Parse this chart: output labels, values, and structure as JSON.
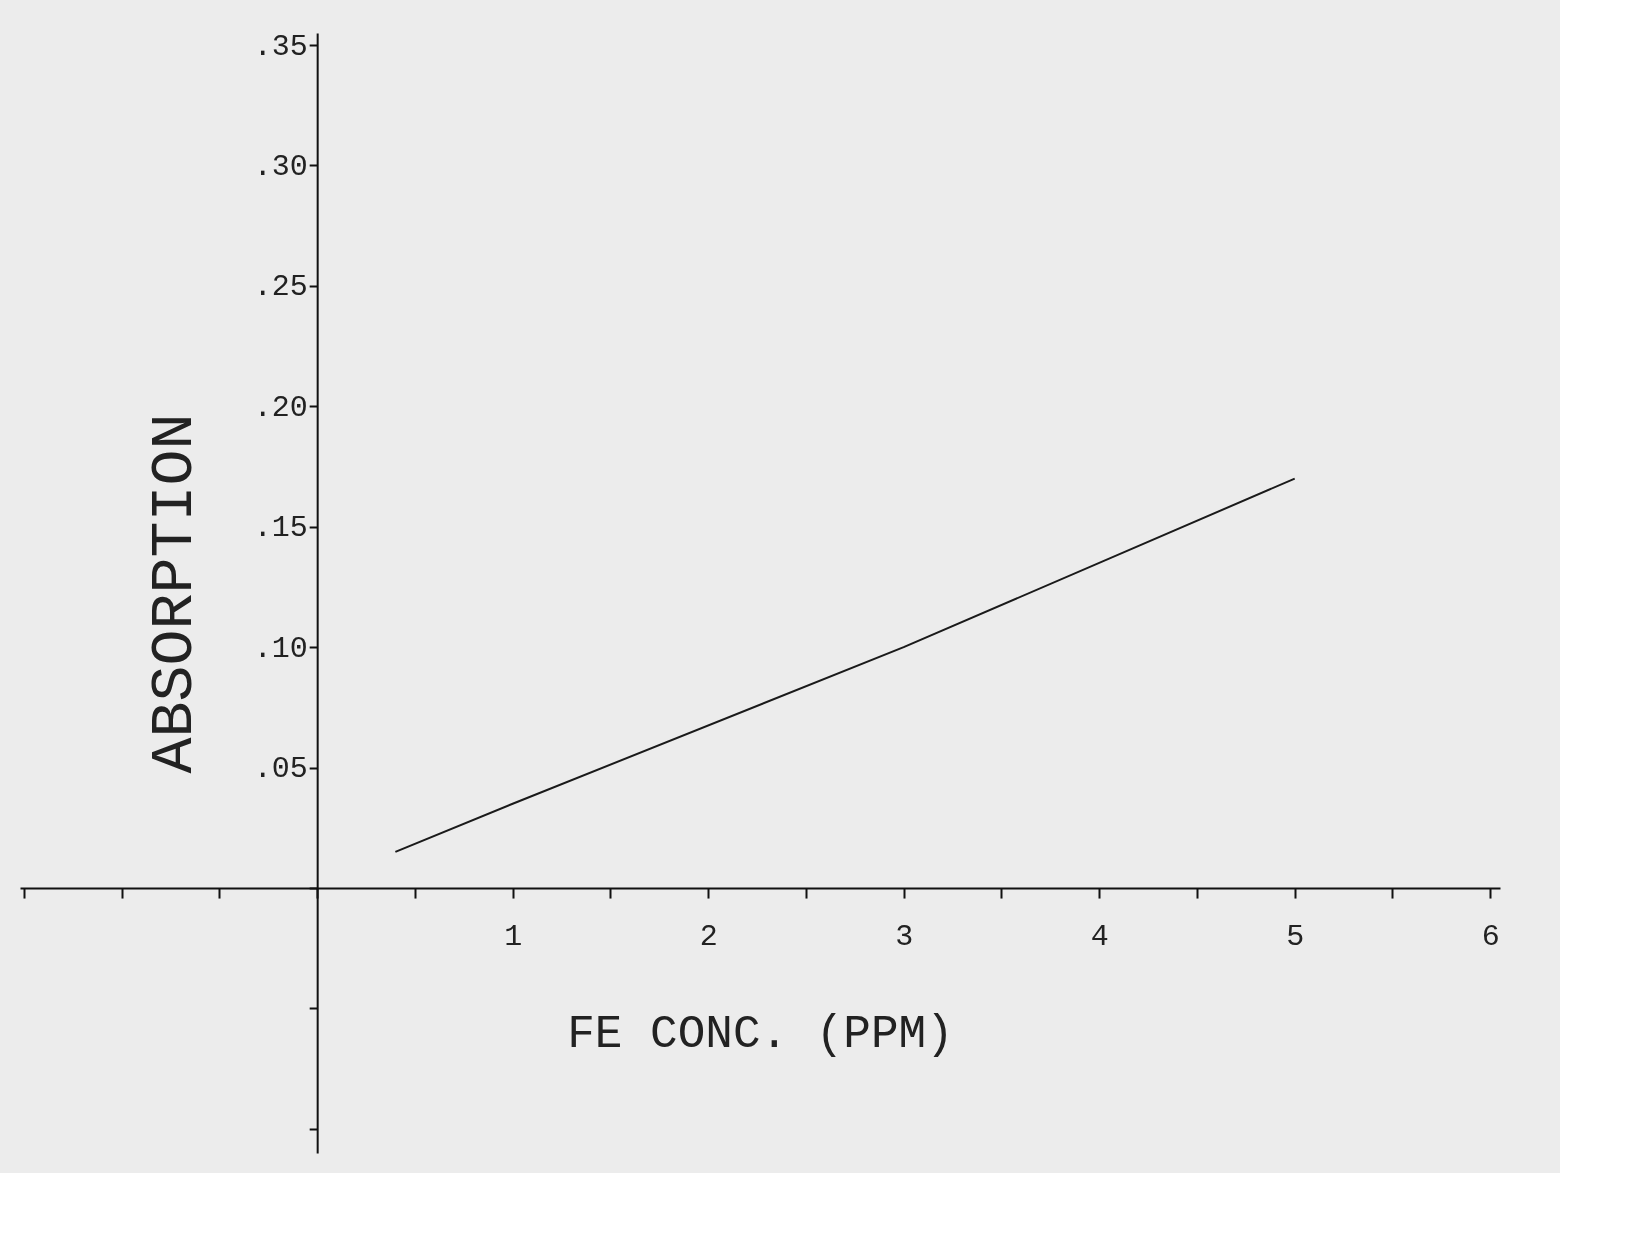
{
  "chart_data": {
    "type": "line",
    "xlabel": "FE CONC. (PPM)",
    "ylabel": "ABSORPTION",
    "x": [
      0.4,
      1,
      3,
      5
    ],
    "series": [
      {
        "color": "#1a1a1a",
        "values": [
          0.015,
          0.035,
          0.1,
          0.17
        ]
      }
    ],
    "xlim": [
      -1.52,
      6.05
    ],
    "xticks": [
      {
        "value": -1.5,
        "label": null
      },
      {
        "value": -1,
        "label": null
      },
      {
        "value": -0.5,
        "label": null
      },
      {
        "value": 0,
        "label": null
      },
      {
        "value": 0.5,
        "label": null
      },
      1,
      {
        "value": 1.5,
        "label": null
      },
      2,
      {
        "value": 2.5,
        "label": null
      },
      3,
      {
        "value": 3.5,
        "label": null
      },
      4,
      {
        "value": 4.5,
        "label": null
      },
      5,
      {
        "value": 5.5,
        "label": null
      },
      6
    ],
    "ylim": [
      -0.11,
      0.355
    ],
    "yticks": [
      {
        "value": -0.1,
        "label": null
      },
      {
        "value": -0.05,
        "label": null
      },
      {
        "value": 0,
        "label": null
      },
      {
        "value": 0.05,
        "label": ".05"
      },
      {
        "value": 0.1,
        "label": ".10"
      },
      {
        "value": 0.15,
        "label": ".15"
      },
      {
        "value": 0.2,
        "label": ".20"
      },
      {
        "value": 0.25,
        "label": ".25"
      },
      {
        "value": 0.3,
        "label": ".30"
      },
      {
        "value": 0.35,
        "label": ".35"
      }
    ],
    "grid": false,
    "marker": "none",
    "line_style": "solid"
  }
}
